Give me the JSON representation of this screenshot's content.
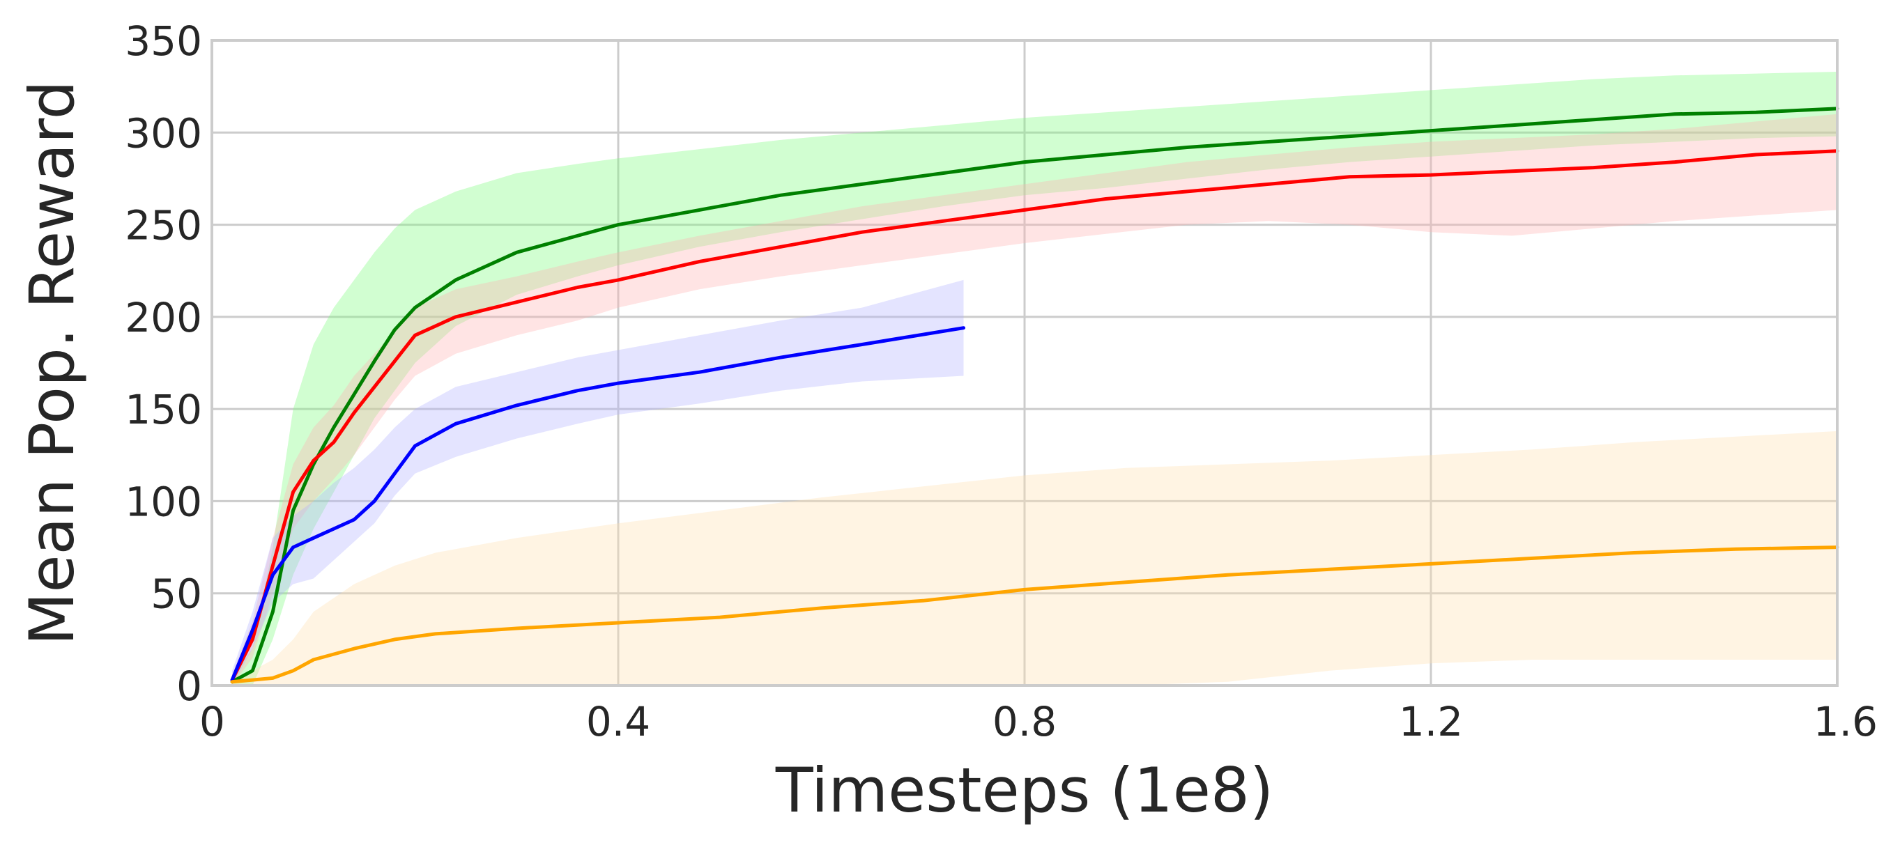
{
  "chart_data": {
    "type": "line",
    "title": "",
    "xlabel": "Timesteps (1e8)",
    "ylabel": "Mean Pop. Reward",
    "xlim": [
      0,
      1.6
    ],
    "ylim": [
      0,
      350
    ],
    "x_ticks": [
      0,
      0.4,
      0.8,
      1.2,
      1.6
    ],
    "x_tick_labels": [
      "0",
      "0.4",
      "0.8",
      "1.2",
      "1.6"
    ],
    "y_ticks": [
      0,
      50,
      100,
      150,
      200,
      250,
      300,
      350
    ],
    "y_tick_labels": [
      "0",
      "50",
      "100",
      "150",
      "200",
      "250",
      "300",
      "350"
    ],
    "grid": true,
    "legend": "none",
    "series": [
      {
        "color": "#008000",
        "band_color": "#7CFC7C",
        "x": [
          0.02,
          0.04,
          0.06,
          0.08,
          0.1,
          0.12,
          0.14,
          0.16,
          0.18,
          0.2,
          0.24,
          0.3,
          0.36,
          0.4,
          0.48,
          0.56,
          0.64,
          0.72,
          0.8,
          0.88,
          0.96,
          1.04,
          1.12,
          1.2,
          1.28,
          1.36,
          1.44,
          1.52,
          1.6
        ],
        "y": [
          2,
          8,
          40,
          95,
          120,
          140,
          158,
          176,
          193,
          205,
          220,
          235,
          244,
          250,
          258,
          266,
          272,
          278,
          284,
          288,
          292,
          295,
          298,
          301,
          304,
          307,
          310,
          311,
          313
        ],
        "lower": [
          0,
          0,
          25,
          60,
          85,
          105,
          125,
          145,
          160,
          175,
          195,
          212,
          222,
          228,
          238,
          246,
          253,
          260,
          266,
          270,
          275,
          280,
          284,
          287,
          290,
          293,
          295,
          297,
          298
        ],
        "upper": [
          5,
          20,
          75,
          150,
          185,
          205,
          220,
          235,
          248,
          258,
          268,
          278,
          283,
          286,
          291,
          296,
          300,
          304,
          308,
          311,
          314,
          317,
          320,
          323,
          326,
          329,
          331,
          332,
          333
        ]
      },
      {
        "color": "#ff0000",
        "band_color": "#ffb3b3",
        "x": [
          0.02,
          0.04,
          0.06,
          0.08,
          0.1,
          0.12,
          0.14,
          0.16,
          0.18,
          0.2,
          0.24,
          0.3,
          0.36,
          0.4,
          0.48,
          0.56,
          0.64,
          0.72,
          0.8,
          0.88,
          0.96,
          1.04,
          1.12,
          1.2,
          1.28,
          1.36,
          1.44,
          1.52,
          1.6
        ],
        "y": [
          3,
          25,
          65,
          105,
          122,
          132,
          148,
          162,
          176,
          190,
          200,
          208,
          216,
          220,
          230,
          238,
          246,
          252,
          258,
          264,
          268,
          272,
          276,
          277,
          279,
          281,
          284,
          288,
          290
        ],
        "lower": [
          0,
          15,
          50,
          85,
          100,
          112,
          125,
          140,
          155,
          168,
          180,
          190,
          198,
          205,
          215,
          222,
          228,
          234,
          240,
          245,
          250,
          252,
          250,
          246,
          244,
          248,
          252,
          255,
          258
        ],
        "upper": [
          6,
          35,
          80,
          120,
          140,
          152,
          168,
          180,
          192,
          205,
          215,
          222,
          230,
          235,
          244,
          252,
          260,
          266,
          272,
          278,
          284,
          288,
          292,
          295,
          297,
          299,
          302,
          306,
          310
        ]
      },
      {
        "color": "#0000ff",
        "band_color": "#b3b3ff",
        "x": [
          0.02,
          0.04,
          0.06,
          0.08,
          0.1,
          0.12,
          0.14,
          0.16,
          0.18,
          0.2,
          0.24,
          0.3,
          0.36,
          0.4,
          0.48,
          0.56,
          0.64,
          0.74
        ],
        "y": [
          3,
          30,
          60,
          75,
          80,
          85,
          90,
          100,
          115,
          130,
          142,
          152,
          160,
          164,
          170,
          178,
          185,
          194
        ],
        "lower": [
          0,
          20,
          45,
          55,
          58,
          68,
          78,
          88,
          103,
          115,
          124,
          134,
          142,
          147,
          153,
          160,
          165,
          168
        ],
        "upper": [
          8,
          40,
          80,
          92,
          100,
          110,
          118,
          128,
          140,
          150,
          162,
          170,
          178,
          182,
          190,
          198,
          205,
          220
        ]
      },
      {
        "color": "#ffa500",
        "band_color": "#ffdfb0",
        "x": [
          0.02,
          0.04,
          0.06,
          0.08,
          0.1,
          0.14,
          0.18,
          0.22,
          0.3,
          0.4,
          0.5,
          0.6,
          0.7,
          0.8,
          0.9,
          1.0,
          1.1,
          1.2,
          1.3,
          1.4,
          1.5,
          1.6
        ],
        "y": [
          2,
          3,
          4,
          8,
          14,
          20,
          25,
          28,
          31,
          34,
          37,
          42,
          46,
          52,
          56,
          60,
          63,
          66,
          69,
          72,
          74,
          75
        ],
        "lower": [
          0,
          0,
          0,
          0,
          0,
          0,
          0,
          0,
          0,
          0,
          0,
          0,
          0,
          0,
          0,
          2,
          8,
          12,
          14,
          14,
          14,
          14
        ],
        "upper": [
          4,
          8,
          14,
          25,
          40,
          55,
          65,
          72,
          80,
          88,
          95,
          102,
          108,
          114,
          118,
          120,
          122,
          125,
          128,
          132,
          135,
          138
        ]
      }
    ]
  }
}
